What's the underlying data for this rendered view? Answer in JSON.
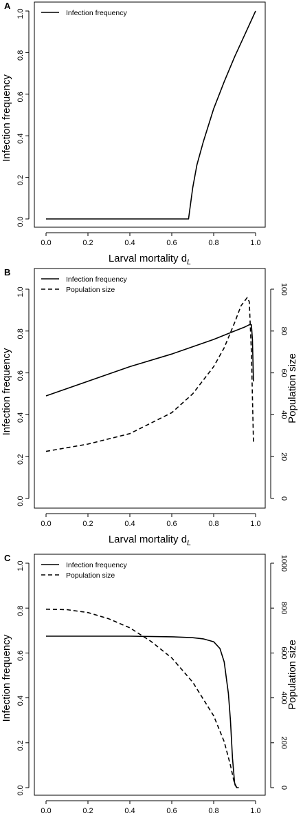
{
  "chart_data": [
    {
      "panel": "A",
      "type": "line",
      "xlabel": "Larval mortality d",
      "xlabel_sub": "L",
      "ylabel": "Infection frequency",
      "xlim": [
        0,
        1
      ],
      "ylim": [
        0,
        1
      ],
      "xticks": [
        "0.0",
        "0.2",
        "0.4",
        "0.6",
        "0.8",
        "1.0"
      ],
      "yticks": [
        "0.0",
        "0.2",
        "0.4",
        "0.6",
        "0.8",
        "1.0"
      ],
      "legend_position": "top-left",
      "series": [
        {
          "name": "Infection frequency",
          "axis": "left",
          "style": "solid",
          "x": [
            0,
            0.2,
            0.4,
            0.6,
            0.68,
            0.7,
            0.72,
            0.75,
            0.8,
            0.85,
            0.9,
            0.95,
            1.0
          ],
          "y": [
            0,
            0,
            0,
            0,
            0,
            0.15,
            0.26,
            0.37,
            0.53,
            0.66,
            0.78,
            0.89,
            1.0
          ]
        }
      ]
    },
    {
      "panel": "B",
      "type": "line",
      "xlabel": "Larval mortality d",
      "xlabel_sub": "L",
      "ylabel": "Infection frequency",
      "y2label": "Population size",
      "xlim": [
        0,
        1
      ],
      "ylim": [
        0,
        1
      ],
      "y2lim": [
        0,
        100
      ],
      "xticks": [
        "0.0",
        "0.2",
        "0.4",
        "0.6",
        "0.8",
        "1.0"
      ],
      "yticks": [
        "0.0",
        "0.2",
        "0.4",
        "0.6",
        "0.8",
        "1.0"
      ],
      "y2ticks": [
        "0",
        "20",
        "40",
        "60",
        "80",
        "100"
      ],
      "legend_position": "top-left",
      "series": [
        {
          "name": "Infection frequency",
          "axis": "left",
          "style": "solid",
          "x": [
            0,
            0.2,
            0.4,
            0.6,
            0.8,
            0.9,
            0.95,
            0.97,
            0.98,
            0.985,
            0.99
          ],
          "y": [
            0.49,
            0.56,
            0.63,
            0.69,
            0.76,
            0.8,
            0.82,
            0.83,
            0.83,
            0.76,
            0.56
          ]
        },
        {
          "name": "Population size",
          "axis": "right",
          "style": "dashed",
          "x": [
            0,
            0.2,
            0.4,
            0.6,
            0.7,
            0.8,
            0.85,
            0.9,
            0.93,
            0.96,
            0.97,
            0.98,
            0.99
          ],
          "y": [
            22.5,
            26,
            31,
            41,
            50,
            63,
            72,
            84,
            92,
            96,
            94,
            70,
            27
          ]
        }
      ]
    },
    {
      "panel": "C",
      "type": "line",
      "xlabel": "Larval mortality d",
      "xlabel_sub": "L",
      "ylabel": "Infection frequency",
      "y2label": "Population size",
      "xlim": [
        0,
        1
      ],
      "ylim": [
        0,
        1
      ],
      "y2lim": [
        0,
        1000
      ],
      "xticks": [
        "0.0",
        "0.2",
        "0.4",
        "0.6",
        "0.8",
        "1.0"
      ],
      "yticks": [
        "0.0",
        "0.2",
        "0.4",
        "0.6",
        "0.8",
        "1.0"
      ],
      "y2ticks": [
        "0",
        "200",
        "400",
        "600",
        "800",
        "1000"
      ],
      "legend_position": "top-left",
      "series": [
        {
          "name": "Infection frequency",
          "axis": "left",
          "style": "solid",
          "x": [
            0,
            0.2,
            0.4,
            0.6,
            0.7,
            0.75,
            0.8,
            0.83,
            0.85,
            0.87,
            0.88,
            0.89,
            0.9,
            0.91,
            0.92
          ],
          "y": [
            0.675,
            0.675,
            0.675,
            0.672,
            0.668,
            0.663,
            0.65,
            0.62,
            0.56,
            0.42,
            0.3,
            0.13,
            0.02,
            0.0,
            0.0
          ]
        },
        {
          "name": "Population size",
          "axis": "right",
          "style": "dashed",
          "x": [
            0,
            0.1,
            0.2,
            0.3,
            0.4,
            0.5,
            0.6,
            0.7,
            0.8,
            0.85,
            0.88,
            0.9,
            0.91
          ],
          "y": [
            795,
            793,
            780,
            752,
            712,
            652,
            578,
            470,
            320,
            205,
            100,
            15,
            0
          ]
        }
      ]
    }
  ]
}
